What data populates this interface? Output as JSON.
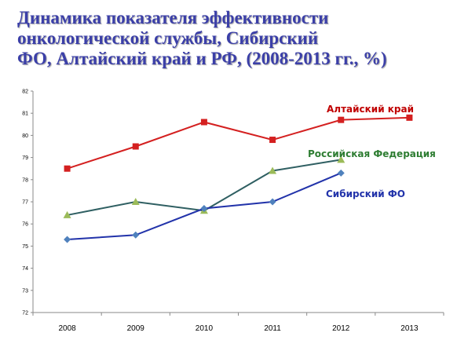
{
  "title_lines": [
    "Динамика показателя эффективности",
    "онкологической службы, Сибирский",
    "ФО, Алтайский край и РФ, (2008-2013 гг., %)"
  ],
  "chart_data": {
    "type": "line",
    "x": [
      "2008",
      "2009",
      "2010",
      "2011",
      "2012",
      "2013"
    ],
    "ylim": [
      72,
      82
    ],
    "yticks": [
      72,
      73,
      74,
      75,
      76,
      77,
      78,
      79,
      80,
      81,
      82
    ],
    "grid": false,
    "series": [
      {
        "name": "Алтайский край",
        "color": "#d42020",
        "marker": "square",
        "values": [
          78.5,
          79.5,
          80.6,
          79.8,
          80.7,
          80.8
        ]
      },
      {
        "name": "Российская Федерация",
        "color": "#2f5f62",
        "marker_color": "#9bbb59",
        "label_color": "#2e7d32",
        "marker": "triangle",
        "values": [
          76.4,
          77.0,
          76.6,
          78.4,
          78.9,
          null
        ]
      },
      {
        "name": "Сибирский ФО",
        "color": "#2233aa",
        "marker_color": "#4f81bd",
        "marker": "diamond",
        "values": [
          75.3,
          75.5,
          76.7,
          77.0,
          78.3,
          null
        ]
      }
    ]
  }
}
